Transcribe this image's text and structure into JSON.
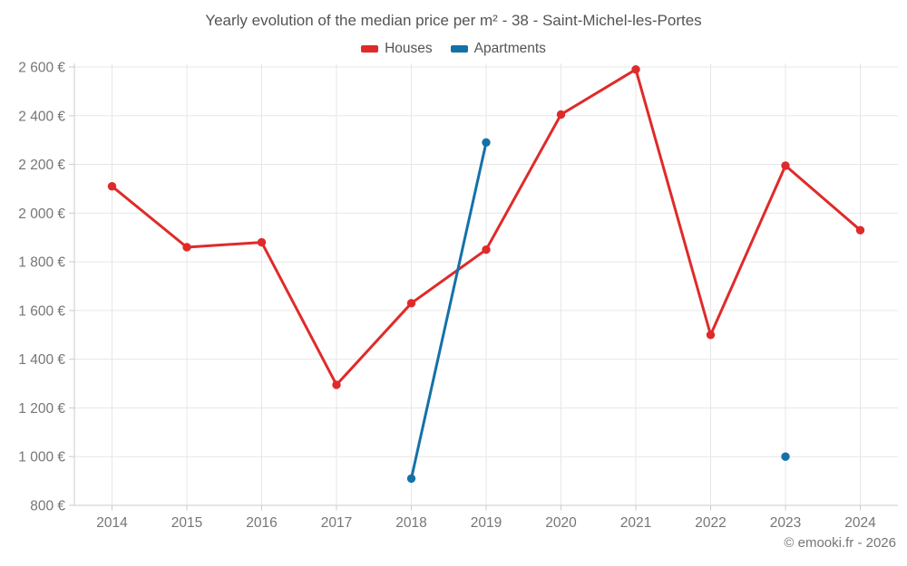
{
  "footer": {
    "copyright": "© emooki.fr - 2026"
  },
  "colors": {
    "grid": "#e7e7e7",
    "axis": "#cbcbcb",
    "tick_label": "#767676",
    "title_text": "#545454",
    "houses": "#e02a2a",
    "apartments": "#1471a8"
  },
  "chart_data": {
    "type": "line",
    "title": "Yearly evolution of the median price per m² - 38 - Saint-Michel-les-Portes",
    "x": [
      2014,
      2015,
      2016,
      2017,
      2018,
      2019,
      2020,
      2021,
      2022,
      2023,
      2024
    ],
    "series": [
      {
        "name": "Houses",
        "color": "#e02a2a",
        "values": [
          2110,
          1860,
          1880,
          1295,
          1630,
          1850,
          2405,
          2590,
          1500,
          2195,
          1930
        ]
      },
      {
        "name": "Apartments",
        "color": "#1471a8",
        "values": [
          null,
          null,
          null,
          null,
          910,
          2290,
          null,
          null,
          null,
          1000,
          null
        ]
      }
    ],
    "ylim": [
      800,
      2600
    ],
    "ytick_step": 200,
    "ytick_format": "{value} €",
    "grid": true,
    "legend_position": "top",
    "marker": "circle"
  }
}
